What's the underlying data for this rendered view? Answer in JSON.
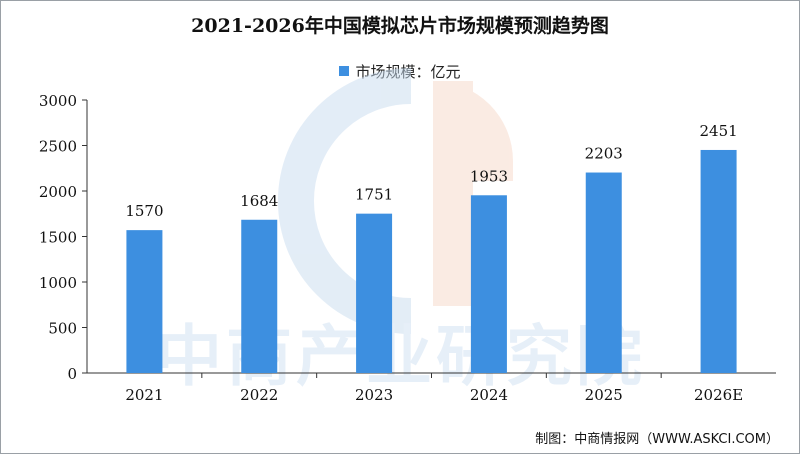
{
  "chart_data": {
    "type": "bar",
    "title": "2021-2026年中国模拟芯片市场规模预测趋势图",
    "categories": [
      "2021",
      "2022",
      "2023",
      "2024",
      "2025",
      "2026E"
    ],
    "series": [
      {
        "name": "市场规模：亿元",
        "values": [
          1570,
          1684,
          1751,
          1953,
          2203,
          2451
        ]
      }
    ],
    "ylim": [
      0,
      3000
    ],
    "yticks": [
      0,
      500,
      1000,
      1500,
      2000,
      2500,
      3000
    ],
    "grid": false,
    "legend": "top-center",
    "bar_color": "#3d8fe0"
  },
  "watermark": "中商产业研究院",
  "source": "制图：中商情报网（WWW.ASKCI.COM）"
}
